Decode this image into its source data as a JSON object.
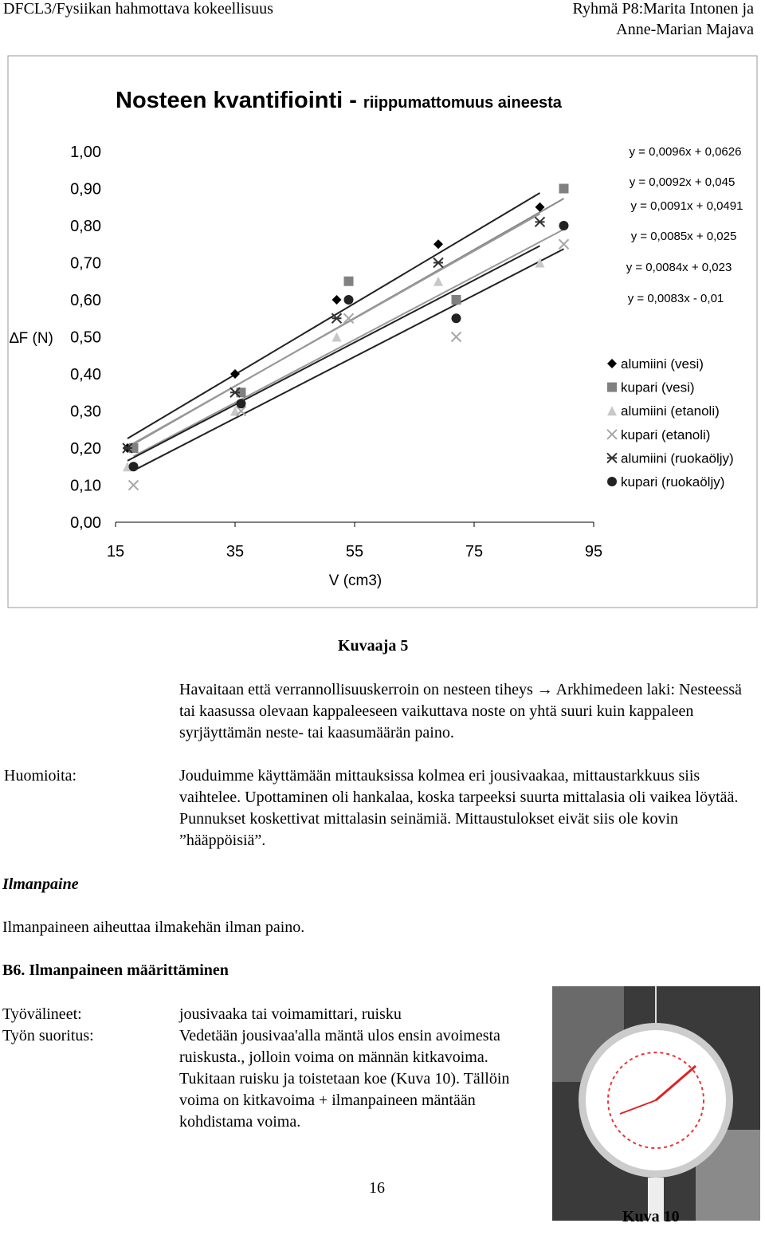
{
  "header": {
    "left": "DFCL3/Fysiikan hahmottava kokeellisuus",
    "right_line1": "Ryhmä P8:Marita Intonen ja",
    "right_line2": "Anne-Marian Majava"
  },
  "chart_data": {
    "type": "scatter",
    "title": "Nosteen kvantifiointi -",
    "subtitle": "riippumattomuus aineesta",
    "x_label": "V (cm3)",
    "y_label": "∆F (N)",
    "xlim": [
      15,
      95
    ],
    "xticks": [
      15,
      35,
      55,
      75,
      95
    ],
    "ylim": [
      0,
      1
    ],
    "yticks": [
      {
        "value": 0,
        "label": "0,00"
      },
      {
        "value": 0.1,
        "label": "0,10"
      },
      {
        "value": 0.2,
        "label": "0,20"
      },
      {
        "value": 0.3,
        "label": "0,30"
      },
      {
        "value": 0.4,
        "label": "0,40"
      },
      {
        "value": 0.5,
        "label": "0,50"
      },
      {
        "value": 0.6,
        "label": "0,60"
      },
      {
        "value": 0.7,
        "label": "0,70"
      },
      {
        "value": 0.8,
        "label": "0,80"
      },
      {
        "value": 0.9,
        "label": "0,90"
      },
      {
        "value": 1,
        "label": "1,00"
      }
    ],
    "legend": "right",
    "series": [
      {
        "name": "alumiini (vesi)",
        "color": "#000000",
        "marker": "diamond",
        "x": [
          17,
          35,
          52,
          69,
          86
        ],
        "values": [
          0.2,
          0.4,
          0.6,
          0.75,
          0.85
        ],
        "trendline": {
          "slope": 0.0096,
          "intercept": 0.0626,
          "label": "y = 0,0096x + 0,0626"
        }
      },
      {
        "name": "kupari (vesi)",
        "color": "#808080",
        "marker": "square",
        "x": [
          18,
          36,
          54,
          72,
          90
        ],
        "values": [
          0.2,
          0.35,
          0.65,
          0.6,
          0.9
        ],
        "trendline": {
          "slope": 0.0092,
          "intercept": 0.045,
          "label": "y = 0,0092x + 0,045"
        }
      },
      {
        "name": "alumiini (etanoli)",
        "color": "#c8c8c8",
        "marker": "triangle",
        "x": [
          17,
          35,
          52,
          69,
          86
        ],
        "values": [
          0.15,
          0.3,
          0.5,
          0.65,
          0.7
        ],
        "trendline": {
          "slope": 0.0091,
          "intercept": 0.0491,
          "label": "y = 0,0091x + 0,0491"
        }
      },
      {
        "name": "kupari (etanoli)",
        "color": "#a8a8a8",
        "marker": "cross",
        "x": [
          18,
          36,
          54,
          72,
          90
        ],
        "values": [
          0.1,
          0.3,
          0.55,
          0.5,
          0.75
        ],
        "trendline": {
          "slope": 0.0085,
          "intercept": 0.025,
          "label": "y = 0,0085x + 0,025"
        }
      },
      {
        "name": "alumiini (ruokaöljy)",
        "color": "#333333",
        "marker": "asterisk",
        "x": [
          17,
          35,
          52,
          69,
          86
        ],
        "values": [
          0.2,
          0.35,
          0.55,
          0.7,
          0.81
        ],
        "trendline": {
          "slope": 0.0084,
          "intercept": 0.023,
          "label": "y = 0,0084x + 0,023"
        }
      },
      {
        "name": "kupari (ruokaöljy)",
        "color": "#222222",
        "marker": "circle",
        "x": [
          18,
          36,
          54,
          72,
          90
        ],
        "values": [
          0.15,
          0.32,
          0.6,
          0.55,
          0.8
        ],
        "trendline": {
          "slope": 0.0083,
          "intercept": -0.01,
          "label": "y = 0,0083x - 0,01"
        }
      }
    ]
  },
  "body": {
    "chart_caption": "Kuvaaja 5",
    "conclusion": "Havaitaan että verrannollisuuskerroin on nesteen tiheys → Arkhimedeen laki: Nesteessä tai kaasussa olevaan kappaleeseen vaikuttava noste on yhtä suuri kuin kappaleen syrjäyttämän neste- tai kaasumäärän paino.",
    "notes_label": "Huomioita:",
    "notes": "Jouduimme käyttämään mittauksissa kolmea eri jousivaakaa, mittaustarkkuus siis vaihtelee. Upottaminen oli hankalaa, koska tarpeeksi suurta mittalasia oli vaikea löytää. Punnukset koskettivat mittalasin seinämiä. Mittaustulokset eivät siis ole kovin ”hääppöisiä”.",
    "section_heading": "Ilmanpaine",
    "section_text": "Ilmanpaineen aiheuttaa ilmakehän ilman paino.",
    "subsection_heading": "B6. Ilmanpaineen määrittäminen",
    "tools_label": "Työvälineet:",
    "tools": "jousivaaka tai voimamittari, ruisku",
    "procedure_label": "Työn suoritus:",
    "procedure": "Vedetään jousivaa'alla mäntä ulos ensin avoimesta ruiskusta., jolloin voima on männän kitkavoima. Tukitaan ruisku ja toistetaan koe (Kuva 10). Tällöin voima on kitkavoima + ilmanpaineen mäntään kohdistama voima.",
    "photo_caption": "Kuva 10"
  },
  "footer": {
    "page_number": "16"
  }
}
